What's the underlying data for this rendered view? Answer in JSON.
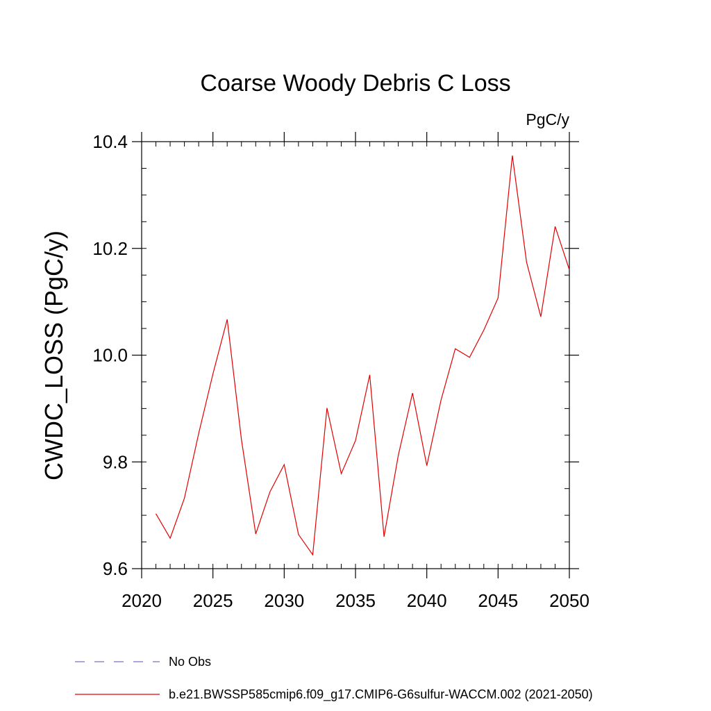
{
  "chart_data": {
    "type": "line",
    "title": "Coarse Woody Debris C Loss",
    "units_label": "PgC/y",
    "ylabel": "CWDC_LOSS  (PgC/y)",
    "xlabel": "",
    "xlim": [
      2020,
      2050
    ],
    "ylim": [
      9.6,
      10.4
    ],
    "x_ticks": [
      2020,
      2025,
      2030,
      2035,
      2040,
      2045,
      2050
    ],
    "y_ticks": [
      9.6,
      9.8,
      10.0,
      10.2,
      10.4
    ],
    "y_tick_labels": [
      "9.6",
      "9.8",
      "10.0",
      "10.2",
      "10.4"
    ],
    "y_minor_step": 0.05,
    "x_minor_step": 1,
    "grid": false,
    "legend_position": "bottom-left",
    "legend": [
      {
        "label": "No Obs",
        "color": "#7b6fc4",
        "dash": "dashed"
      },
      {
        "label": "b.e21.BWSSP585cmip6.f09_g17.CMIP6-G6sulfur-WACCM.002 (2021-2050)",
        "color": "#e00000",
        "dash": "solid"
      }
    ],
    "series": [
      {
        "color": "#e00000",
        "x": [
          2021,
          2022,
          2023,
          2024,
          2025,
          2026,
          2027,
          2028,
          2029,
          2030,
          2031,
          2032,
          2033,
          2034,
          2035,
          2036,
          2037,
          2038,
          2039,
          2040,
          2041,
          2042,
          2043,
          2044,
          2045,
          2046,
          2047,
          2048,
          2049,
          2050
        ],
        "values": [
          9.703,
          9.657,
          9.732,
          9.853,
          9.965,
          10.067,
          9.842,
          9.665,
          9.744,
          9.795,
          9.664,
          9.626,
          9.901,
          9.778,
          9.84,
          9.963,
          9.66,
          9.812,
          9.929,
          9.793,
          9.916,
          10.012,
          9.996,
          10.047,
          10.107,
          10.374,
          10.174,
          10.072,
          10.241,
          10.16
        ]
      }
    ]
  }
}
